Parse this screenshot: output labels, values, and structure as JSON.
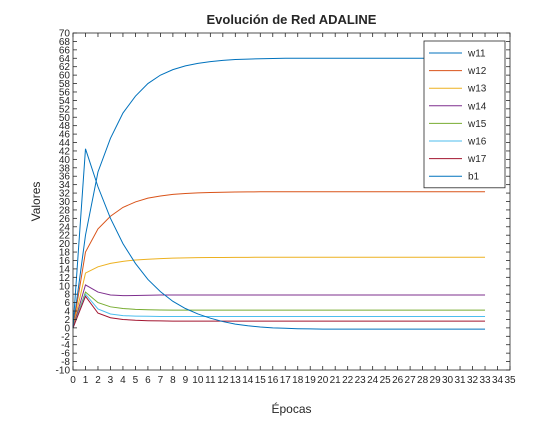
{
  "chart_data": {
    "type": "line",
    "title": "Evolución de Red ADALINE",
    "xlabel": "Épocas",
    "ylabel": "Valores",
    "xlim": [
      0,
      35
    ],
    "ylim": [
      -10,
      70
    ],
    "xticks": [
      0,
      1,
      2,
      3,
      4,
      5,
      6,
      7,
      8,
      9,
      10,
      11,
      12,
      13,
      14,
      15,
      16,
      17,
      18,
      19,
      20,
      21,
      22,
      23,
      24,
      25,
      26,
      27,
      28,
      29,
      30,
      31,
      32,
      33,
      34,
      35
    ],
    "yticks": [
      -10,
      -8,
      -6,
      -4,
      -2,
      0,
      2,
      4,
      6,
      8,
      10,
      12,
      14,
      16,
      18,
      20,
      22,
      24,
      26,
      28,
      30,
      32,
      34,
      36,
      38,
      40,
      42,
      44,
      46,
      48,
      50,
      52,
      54,
      56,
      58,
      60,
      62,
      64,
      66,
      68,
      70
    ],
    "grid": false,
    "legend_position": "top-right",
    "x": [
      0,
      1,
      2,
      3,
      4,
      5,
      6,
      7,
      8,
      9,
      10,
      11,
      12,
      13,
      14,
      15,
      16,
      17,
      18,
      19,
      20,
      21,
      22,
      23,
      24,
      25,
      26,
      27,
      28,
      29,
      30,
      31,
      32,
      33
    ],
    "series": [
      {
        "name": "w11",
        "color": "#0072BD",
        "values": [
          0,
          22,
          37,
          45,
          51,
          55,
          58,
          60,
          61.3,
          62.2,
          62.8,
          63.2,
          63.5,
          63.7,
          63.8,
          63.9,
          63.95,
          64,
          64,
          64,
          64,
          64,
          64,
          64,
          64,
          64,
          64,
          64,
          64,
          64,
          64,
          64,
          64,
          64
        ]
      },
      {
        "name": "w12",
        "color": "#D95319",
        "values": [
          0,
          18,
          23.5,
          26.5,
          28.6,
          29.9,
          30.8,
          31.3,
          31.7,
          31.9,
          32.05,
          32.15,
          32.2,
          32.25,
          32.28,
          32.3,
          32.3,
          32.3,
          32.3,
          32.3,
          32.3,
          32.3,
          32.3,
          32.3,
          32.3,
          32.3,
          32.3,
          32.3,
          32.3,
          32.3,
          32.3,
          32.3,
          32.3,
          32.3
        ]
      },
      {
        "name": "w13",
        "color": "#EDB120",
        "values": [
          0,
          13,
          14.5,
          15.3,
          15.8,
          16.1,
          16.3,
          16.45,
          16.55,
          16.62,
          16.67,
          16.7,
          16.72,
          16.74,
          16.75,
          16.76,
          16.76,
          16.77,
          16.77,
          16.77,
          16.77,
          16.77,
          16.77,
          16.77,
          16.77,
          16.77,
          16.77,
          16.77,
          16.77,
          16.77,
          16.77,
          16.77,
          16.77,
          16.77
        ]
      },
      {
        "name": "w14",
        "color": "#7E2F8E",
        "values": [
          0,
          10.2,
          8.5,
          7.8,
          7.65,
          7.7,
          7.75,
          7.8,
          7.8,
          7.8,
          7.8,
          7.8,
          7.8,
          7.8,
          7.8,
          7.8,
          7.8,
          7.8,
          7.8,
          7.8,
          7.8,
          7.8,
          7.8,
          7.8,
          7.8,
          7.8,
          7.8,
          7.8,
          7.8,
          7.8,
          7.8,
          7.8,
          7.8,
          7.8
        ]
      },
      {
        "name": "w15",
        "color": "#77AC30",
        "values": [
          0,
          8.5,
          6,
          5,
          4.6,
          4.4,
          4.3,
          4.25,
          4.2,
          4.2,
          4.2,
          4.2,
          4.2,
          4.2,
          4.2,
          4.2,
          4.2,
          4.2,
          4.2,
          4.2,
          4.2,
          4.2,
          4.2,
          4.2,
          4.2,
          4.2,
          4.2,
          4.2,
          4.2,
          4.2,
          4.2,
          4.2,
          4.2,
          4.2
        ]
      },
      {
        "name": "w16",
        "color": "#4DBEEE",
        "values": [
          0,
          8,
          4.5,
          3.3,
          2.9,
          2.8,
          2.75,
          2.7,
          2.7,
          2.7,
          2.7,
          2.7,
          2.7,
          2.7,
          2.7,
          2.7,
          2.7,
          2.7,
          2.7,
          2.7,
          2.7,
          2.7,
          2.7,
          2.7,
          2.7,
          2.7,
          2.7,
          2.7,
          2.7,
          2.7,
          2.7,
          2.7,
          2.7,
          2.7
        ]
      },
      {
        "name": "w17",
        "color": "#A2142F",
        "values": [
          0,
          7.5,
          3.5,
          2.4,
          2,
          1.8,
          1.7,
          1.65,
          1.6,
          1.6,
          1.6,
          1.6,
          1.6,
          1.6,
          1.6,
          1.6,
          1.6,
          1.6,
          1.6,
          1.6,
          1.6,
          1.6,
          1.6,
          1.6,
          1.6,
          1.6,
          1.6,
          1.6,
          1.6,
          1.6,
          1.6,
          1.6,
          1.6,
          1.6
        ]
      },
      {
        "name": "b1",
        "color": "#0072BD",
        "values": [
          0,
          42.5,
          33.5,
          26,
          20,
          15.3,
          11.5,
          8.6,
          6.3,
          4.6,
          3.3,
          2.3,
          1.5,
          0.9,
          0.5,
          0.2,
          0,
          -0.1,
          -0.2,
          -0.25,
          -0.3,
          -0.3,
          -0.3,
          -0.3,
          -0.3,
          -0.3,
          -0.3,
          -0.3,
          -0.3,
          -0.3,
          -0.3,
          -0.3,
          -0.3,
          -0.3
        ]
      }
    ]
  }
}
